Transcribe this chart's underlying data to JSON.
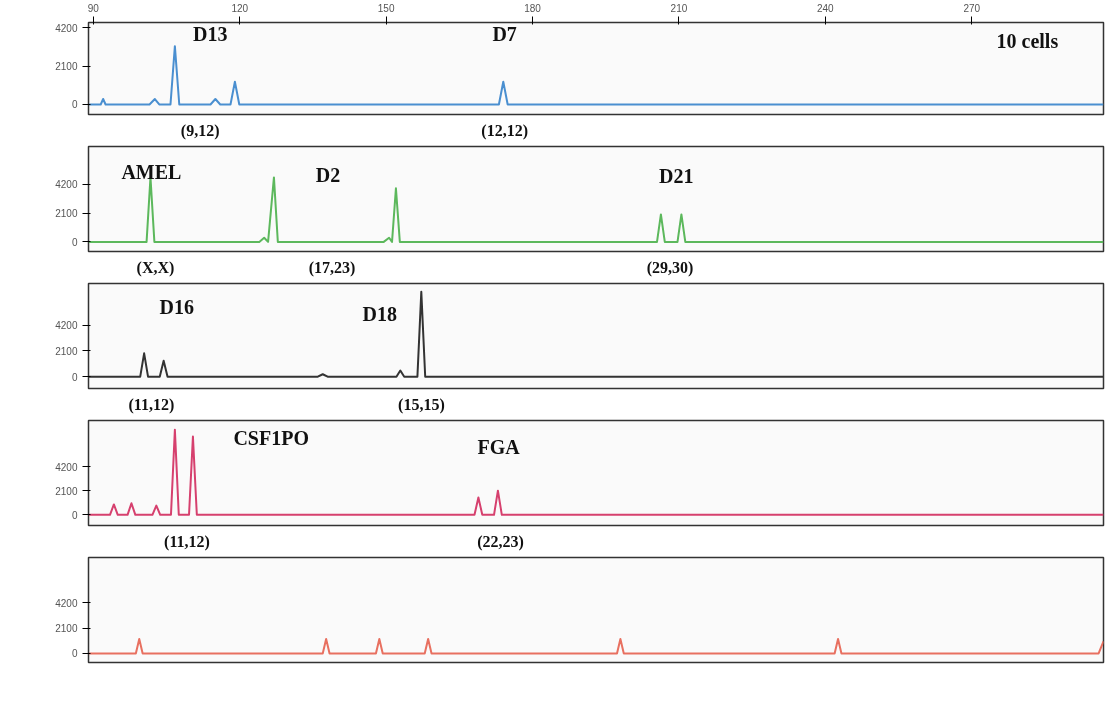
{
  "chart_data": [
    {
      "type": "line",
      "xlim": [
        89,
        297
      ],
      "xticks": [
        90,
        120,
        150,
        180,
        210,
        240,
        270
      ],
      "ylim": [
        -550,
        4500
      ],
      "yticks": [
        0,
        2100,
        4200
      ],
      "series": [
        {
          "color": "#4a8fd0",
          "x": [
            89,
            91.5,
            92,
            92.5,
            101.5,
            102.6,
            103.5,
            105.8,
            106.7,
            107.6,
            114,
            115,
            116,
            118.1,
            119,
            119.9,
            173.1,
            174,
            174.9,
            297
          ],
          "values": [
            0,
            0,
            300,
            0,
            0,
            300,
            0,
            0,
            3200,
            0,
            0,
            300,
            0,
            0,
            1250,
            0,
            0,
            1250,
            0,
            0
          ]
        }
      ],
      "annotations": [
        "D13",
        "D7",
        "(9,12)",
        "(12,12)",
        "10 cells"
      ]
    },
    {
      "type": "line",
      "xlim": [
        89,
        297
      ],
      "ylim": [
        -700,
        6950
      ],
      "yticks": [
        0,
        2100,
        4200
      ],
      "tick_labels": "y",
      "series": [
        {
          "color": "#5cb85c",
          "x": [
            89,
            100.9,
            101.7,
            102.5,
            124,
            125,
            125.8,
            127,
            127.8,
            149.5,
            150.6,
            151.2,
            152,
            152.8,
            205.5,
            206.3,
            207.1,
            209.7,
            210.5,
            211.3,
            297
          ],
          "values": [
            0,
            0,
            4700,
            0,
            0,
            300,
            0,
            4700,
            0,
            0,
            300,
            0,
            3900,
            0,
            0,
            2000,
            0,
            0,
            2000,
            0,
            0
          ]
        }
      ],
      "annotations": [
        "AMEL",
        "D2",
        "D21",
        "(X,X)",
        "(17,23)",
        "(29,30)"
      ]
    },
    {
      "type": "line",
      "xlim": [
        89,
        297
      ],
      "ylim": [
        -960,
        7580
      ],
      "yticks": [
        0,
        2100,
        4200
      ],
      "tick_labels": "y",
      "series": [
        {
          "color": "#333333",
          "x": [
            89,
            99.6,
            100.4,
            101.2,
            103.6,
            104.4,
            105.2,
            136,
            137,
            138,
            152.1,
            152.9,
            153.7,
            156.4,
            157.2,
            158,
            297
          ],
          "values": [
            0,
            0,
            1900,
            0,
            0,
            1300,
            0,
            0,
            200,
            0,
            0,
            500,
            0,
            0,
            6900,
            0,
            0
          ]
        }
      ],
      "annotations": [
        "D16",
        "D18",
        "(11,12)",
        "(15,15)"
      ]
    },
    {
      "type": "line",
      "xlim": [
        89,
        297
      ],
      "ylim": [
        -930,
        8200
      ],
      "yticks": [
        0,
        2100,
        4200
      ],
      "tick_labels": "y",
      "series": [
        {
          "color": "#d6406e",
          "x": [
            89,
            93.4,
            94.2,
            95,
            97,
            97.8,
            98.6,
            102.1,
            102.9,
            103.7,
            105.9,
            106.7,
            107.5,
            109.6,
            110.4,
            111.2,
            168.1,
            168.9,
            169.7,
            172.1,
            172.9,
            173.7,
            297
          ],
          "values": [
            0,
            0,
            900,
            0,
            0,
            1000,
            0,
            0,
            800,
            0,
            0,
            7400,
            0,
            0,
            6800,
            0,
            0,
            1500,
            0,
            0,
            2100,
            0,
            0
          ]
        }
      ],
      "annotations": [
        "CSF1PO",
        "FGA",
        "(11,12)",
        "(22,23)"
      ]
    },
    {
      "type": "line",
      "xlim": [
        89,
        297
      ],
      "ylim": [
        -750,
        7950
      ],
      "yticks": [
        0,
        2100,
        4200
      ],
      "tick_labels": "y",
      "series": [
        {
          "color": "#e87060",
          "x": [
            89,
            98.7,
            99.4,
            100.1,
            137,
            137.7,
            138.4,
            147.9,
            148.6,
            149.3,
            157.9,
            158.6,
            159.3,
            197.3,
            198,
            198.7,
            241.9,
            242.6,
            243.3,
            296,
            297
          ],
          "values": [
            0,
            0,
            1200,
            0,
            0,
            1200,
            0,
            0,
            1200,
            0,
            0,
            1200,
            0,
            0,
            1200,
            0,
            0,
            1200,
            0,
            0,
            1000
          ]
        }
      ]
    }
  ]
}
